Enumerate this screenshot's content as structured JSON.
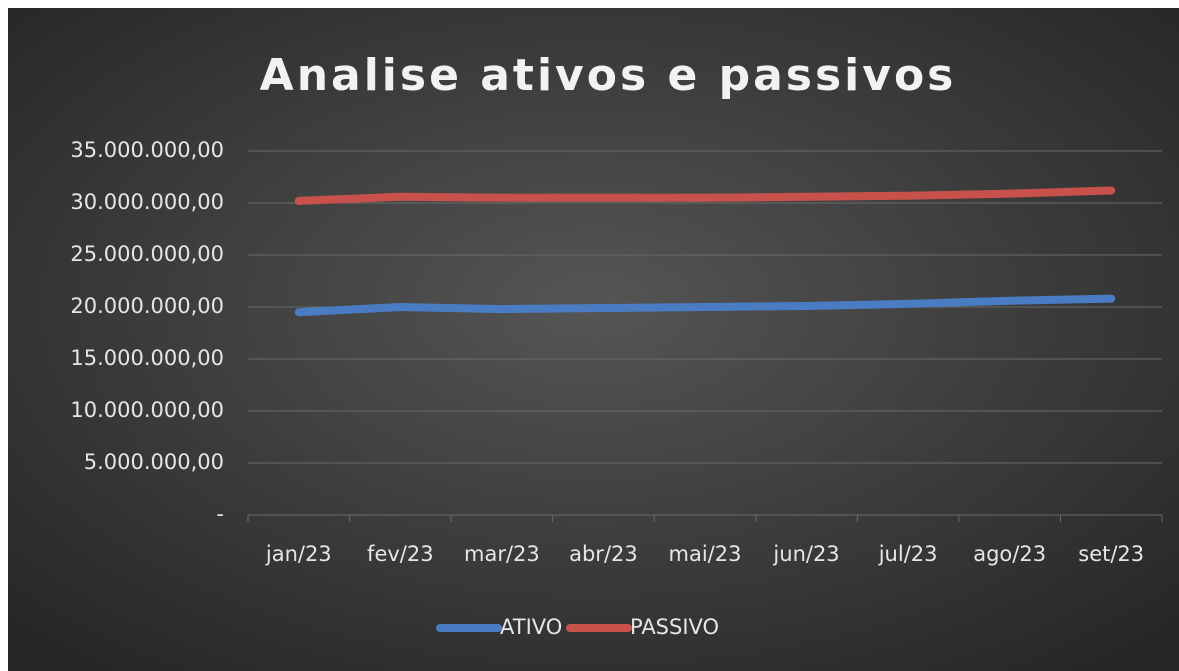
{
  "chart_data": {
    "type": "line",
    "title": "Analise ativos e passivos",
    "categories": [
      "jan/23",
      "fev/23",
      "mar/23",
      "abr/23",
      "mai/23",
      "jun/23",
      "jul/23",
      "ago/23",
      "set/23"
    ],
    "series": [
      {
        "name": "ATIVO",
        "color": "#4a7cc4",
        "values": [
          19500000,
          20000000,
          19800000,
          19900000,
          20000000,
          20100000,
          20300000,
          20600000,
          20800000
        ]
      },
      {
        "name": "PASSIVO",
        "color": "#c9514b",
        "values": [
          30200000,
          30600000,
          30500000,
          30500000,
          30500000,
          30600000,
          30700000,
          30900000,
          31200000
        ]
      }
    ],
    "ylim": [
      0,
      35000000
    ],
    "yticks": [
      {
        "value": 0,
        "label": "-"
      },
      {
        "value": 5000000,
        "label": "5.000.000,00"
      },
      {
        "value": 10000000,
        "label": "10.000.000,00"
      },
      {
        "value": 15000000,
        "label": "15.000.000,00"
      },
      {
        "value": 20000000,
        "label": "20.000.000,00"
      },
      {
        "value": 25000000,
        "label": "25.000.000,00"
      },
      {
        "value": 30000000,
        "label": "30.000.000,00"
      },
      {
        "value": 35000000,
        "label": "35.000.000,00"
      }
    ],
    "grid": true,
    "legend": "bottom"
  }
}
